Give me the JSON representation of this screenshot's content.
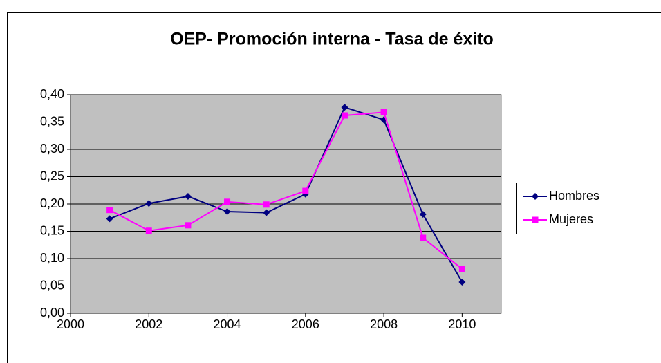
{
  "chart_data": {
    "type": "line",
    "title": "OEP- Promoción interna - Tasa de éxito",
    "x": [
      2001,
      2002,
      2003,
      2004,
      2005,
      2006,
      2007,
      2008,
      2009,
      2010
    ],
    "series": [
      {
        "name": "Hombres",
        "color": "#000080",
        "marker": "diamond",
        "values": [
          0.173,
          0.201,
          0.214,
          0.186,
          0.184,
          0.218,
          0.377,
          0.354,
          0.181,
          0.057
        ]
      },
      {
        "name": "Mujeres",
        "color": "#ff00ff",
        "marker": "square",
        "values": [
          0.189,
          0.151,
          0.161,
          0.204,
          0.199,
          0.224,
          0.362,
          0.368,
          0.138,
          0.081
        ]
      }
    ],
    "xlim": [
      2000,
      2011
    ],
    "xticks": [
      2000,
      2002,
      2004,
      2006,
      2008,
      2010
    ],
    "ylim": [
      0,
      0.4
    ],
    "yticks": [
      {
        "value": 0,
        "label": "0,00"
      },
      {
        "value": 0.05,
        "label": "0,05"
      },
      {
        "value": 0.1,
        "label": "0,10"
      },
      {
        "value": 0.15,
        "label": "0,15"
      },
      {
        "value": 0.2,
        "label": "0,20"
      },
      {
        "value": 0.25,
        "label": "0,25"
      },
      {
        "value": 0.3,
        "label": "0,30"
      },
      {
        "value": 0.35,
        "label": "0,35"
      },
      {
        "value": 0.4,
        "label": "0,40"
      }
    ],
    "grid": true,
    "plot_background": "#c0c0c0",
    "legend": "right"
  }
}
